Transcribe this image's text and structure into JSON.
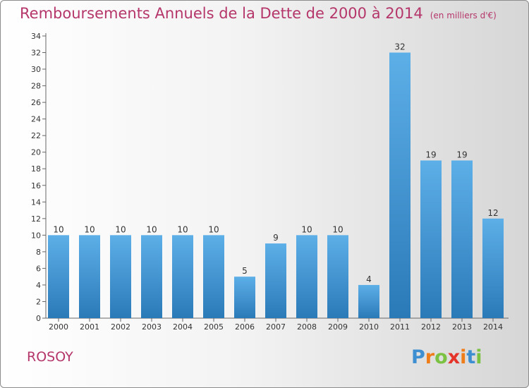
{
  "title": "Remboursements Annuels de la Dette de 2000 à 2014",
  "unit_note": "(en milliers d'€)",
  "location": "ROSOY",
  "logo": {
    "letters": [
      "P",
      "r",
      "o",
      "x",
      "i",
      "t",
      "i"
    ],
    "colors": [
      "#3d8fd1",
      "#ef7d1a",
      "#7cc242",
      "#e5352b",
      "#ef7d1a",
      "#3d8fd1",
      "#7cc242"
    ]
  },
  "colors": {
    "bar_light": "#5dafe8",
    "bar_dark": "#2a7ab8",
    "title": "#b5366a"
  },
  "chart_data": {
    "type": "bar",
    "categories": [
      "2000",
      "2001",
      "2002",
      "2003",
      "2004",
      "2005",
      "2006",
      "2007",
      "2008",
      "2009",
      "2010",
      "2011",
      "2012",
      "2013",
      "2014"
    ],
    "values": [
      10,
      10,
      10,
      10,
      10,
      10,
      5,
      9,
      10,
      10,
      4,
      32,
      19,
      19,
      12
    ],
    "y_ticks": [
      0,
      2,
      4,
      6,
      8,
      10,
      12,
      14,
      16,
      18,
      20,
      22,
      24,
      26,
      28,
      30,
      32,
      34
    ],
    "ylim": [
      0,
      34
    ],
    "grid": false,
    "data_labels": true
  }
}
